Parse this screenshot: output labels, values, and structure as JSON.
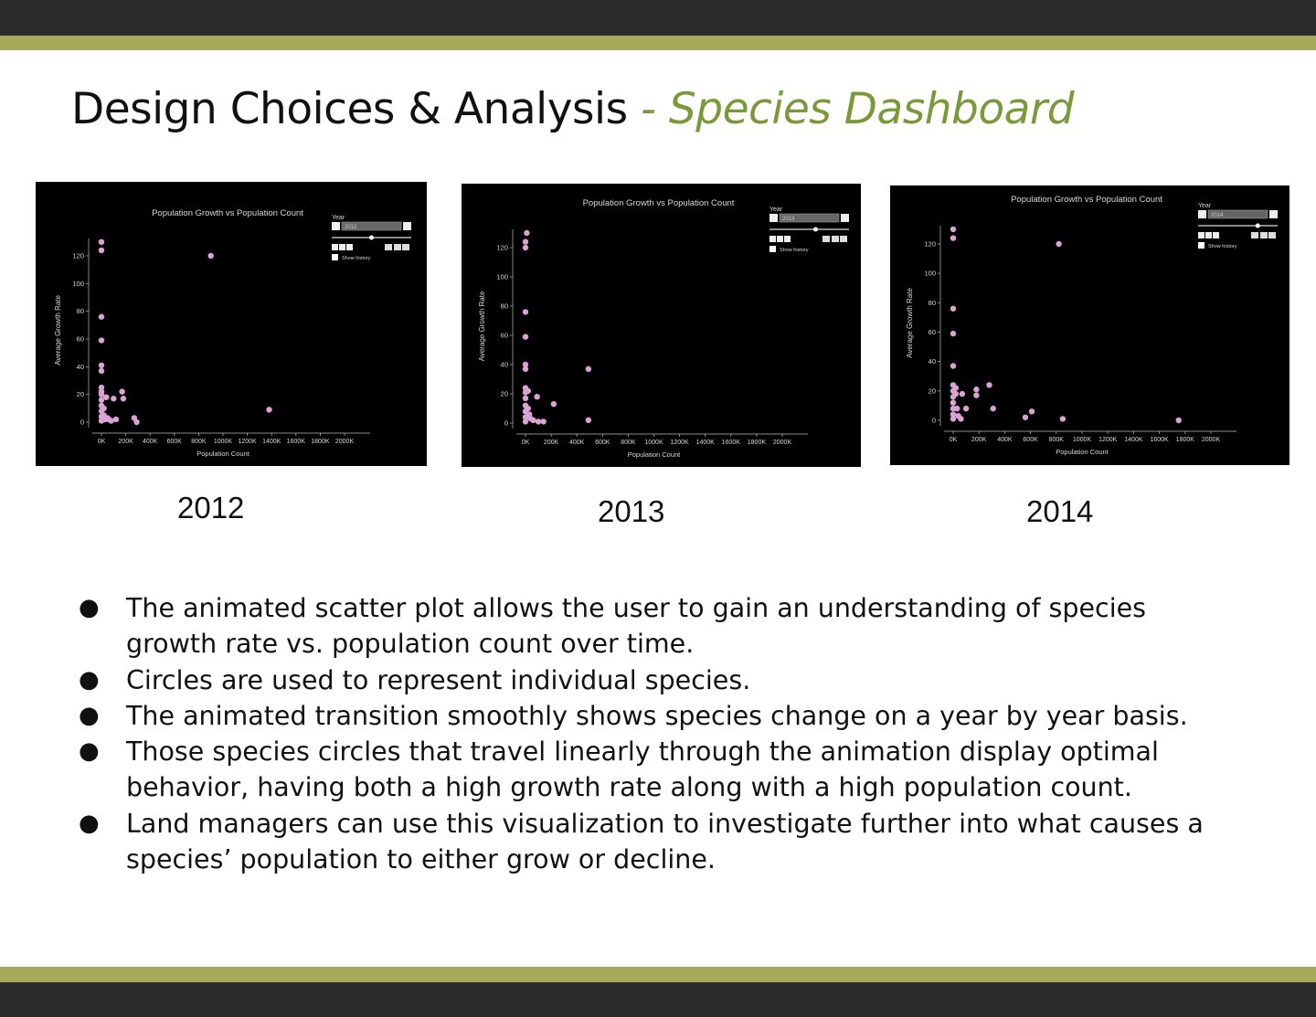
{
  "slide": {
    "title_main": "Design Choices & Analysis",
    "title_accent": " - Species Dashboard",
    "bullets": [
      "The animated scatter plot allows the user to gain an understanding of species growth rate vs. population count over time.",
      "Circles are used to represent individual species.",
      "The animated transition smoothly shows species change on a year by year basis.",
      "Those species circles that travel linearly through the animation display optimal behavior, having both a high growth rate along with a high population count.",
      "Land managers can use this visualization to investigate further into what causes a species’ population to either grow or decline."
    ],
    "bullet_glyph": "●"
  },
  "colors": {
    "accent": "#7a9a3a",
    "stripe": "#a4aa5a",
    "bar": "#2b2b2b",
    "point": "#d9a3d4"
  },
  "chart_data": [
    {
      "type": "scatter",
      "caption": "2012",
      "title": "Population Growth vs Population Count",
      "xlabel": "Population Count",
      "ylabel": "Average Growth Rate",
      "xlim": [
        0,
        2000000
      ],
      "ylim": [
        0,
        130
      ],
      "x_ticks": [
        "0K",
        "200K",
        "400K",
        "600K",
        "800K",
        "1000K",
        "1200K",
        "1400K",
        "1600K",
        "1800K",
        "2000K"
      ],
      "y_ticks": [
        "0",
        "20",
        "40",
        "60",
        "80",
        "100",
        "120"
      ],
      "control": {
        "label": "Year",
        "value": "2012",
        "slider": 0.5,
        "checkbox_label": "Show history"
      },
      "points": [
        [
          0,
          130
        ],
        [
          0,
          124
        ],
        [
          0,
          76
        ],
        [
          0,
          59
        ],
        [
          0,
          41
        ],
        [
          0,
          37
        ],
        [
          0,
          25
        ],
        [
          0,
          22
        ],
        [
          0,
          20
        ],
        [
          0,
          16
        ],
        [
          0,
          12
        ],
        [
          0,
          8
        ],
        [
          0,
          4
        ],
        [
          0,
          1
        ],
        [
          20000,
          10
        ],
        [
          20000,
          5
        ],
        [
          30000,
          2
        ],
        [
          40000,
          18
        ],
        [
          50000,
          3
        ],
        [
          60000,
          2
        ],
        [
          80000,
          1
        ],
        [
          100000,
          17
        ],
        [
          120000,
          2
        ],
        [
          170000,
          22
        ],
        [
          180000,
          17
        ],
        [
          270000,
          3
        ],
        [
          290000,
          0
        ],
        [
          900000,
          120
        ],
        [
          1380000,
          9
        ]
      ]
    },
    {
      "type": "scatter",
      "caption": "2013",
      "title": "Population Growth vs Population Count",
      "xlabel": "Population Count",
      "ylabel": "Average Growth Rate",
      "xlim": [
        0,
        2000000
      ],
      "ylim": [
        0,
        130
      ],
      "x_ticks": [
        "0K",
        "200K",
        "400K",
        "600K",
        "800K",
        "1000K",
        "1200K",
        "1400K",
        "1600K",
        "1800K",
        "2000K"
      ],
      "y_ticks": [
        "0",
        "20",
        "40",
        "60",
        "80",
        "100",
        "120"
      ],
      "control": {
        "label": "Year",
        "value": "2013",
        "slider": 0.58,
        "checkbox_label": "Show history"
      },
      "points": [
        [
          10000,
          130
        ],
        [
          0,
          124
        ],
        [
          0,
          120
        ],
        [
          0,
          76
        ],
        [
          0,
          59
        ],
        [
          0,
          40
        ],
        [
          0,
          37
        ],
        [
          0,
          24
        ],
        [
          0,
          21
        ],
        [
          0,
          17
        ],
        [
          0,
          12
        ],
        [
          0,
          8
        ],
        [
          0,
          4
        ],
        [
          0,
          1
        ],
        [
          20000,
          22
        ],
        [
          20000,
          10
        ],
        [
          30000,
          6
        ],
        [
          40000,
          3
        ],
        [
          60000,
          2
        ],
        [
          90000,
          18
        ],
        [
          100000,
          1
        ],
        [
          140000,
          1
        ],
        [
          220000,
          13
        ],
        [
          490000,
          37
        ],
        [
          490000,
          2
        ]
      ]
    },
    {
      "type": "scatter",
      "caption": "2014",
      "title": "Population Growth vs Population Count",
      "xlabel": "Population Count",
      "ylabel": "Average Growth Rate",
      "xlim": [
        0,
        2000000
      ],
      "ylim": [
        0,
        130
      ],
      "x_ticks": [
        "0K",
        "200K",
        "400K",
        "600K",
        "800K",
        "1000K",
        "1200K",
        "1400K",
        "1600K",
        "1800K",
        "2000K"
      ],
      "y_ticks": [
        "0",
        "20",
        "40",
        "60",
        "80",
        "100",
        "120"
      ],
      "control": {
        "label": "Year",
        "value": "2014",
        "slider": 0.75,
        "checkbox_label": "Show history"
      },
      "points": [
        [
          0,
          130
        ],
        [
          0,
          124
        ],
        [
          0,
          76
        ],
        [
          0,
          59
        ],
        [
          0,
          37
        ],
        [
          0,
          24
        ],
        [
          0,
          20
        ],
        [
          0,
          16
        ],
        [
          0,
          12
        ],
        [
          0,
          8
        ],
        [
          0,
          4
        ],
        [
          0,
          1
        ],
        [
          20000,
          22
        ],
        [
          20000,
          18
        ],
        [
          30000,
          8
        ],
        [
          40000,
          3
        ],
        [
          60000,
          1
        ],
        [
          70000,
          18
        ],
        [
          100000,
          8
        ],
        [
          180000,
          21
        ],
        [
          180000,
          17
        ],
        [
          280000,
          24
        ],
        [
          310000,
          8
        ],
        [
          560000,
          2
        ],
        [
          610000,
          6
        ],
        [
          820000,
          120
        ],
        [
          850000,
          1
        ],
        [
          1750000,
          0
        ]
      ]
    }
  ]
}
